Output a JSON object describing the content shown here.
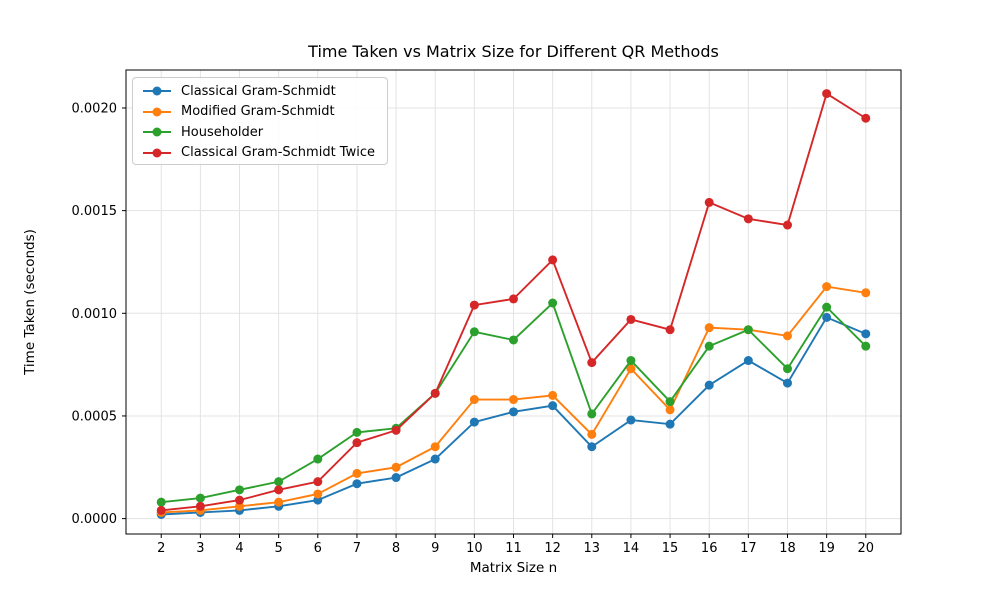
{
  "chart_data": {
    "type": "line",
    "title": "Time Taken vs Matrix Size for Different QR Methods",
    "xlabel": "Matrix Size n",
    "ylabel": "Time Taken (seconds)",
    "x": [
      2,
      3,
      4,
      5,
      6,
      7,
      8,
      9,
      10,
      11,
      12,
      13,
      14,
      15,
      16,
      17,
      18,
      19,
      20
    ],
    "series": [
      {
        "name": "Classical Gram-Schmidt",
        "color": "#1f77b4",
        "values": [
          2e-05,
          3e-05,
          4e-05,
          6e-05,
          9e-05,
          0.00017,
          0.0002,
          0.00029,
          0.00047,
          0.00052,
          0.00055,
          0.00035,
          0.00048,
          0.00046,
          0.00065,
          0.00077,
          0.00066,
          0.00098,
          0.0009
        ]
      },
      {
        "name": "Modified Gram-Schmidt",
        "color": "#ff7f0e",
        "values": [
          3e-05,
          4e-05,
          6e-05,
          8e-05,
          0.00012,
          0.00022,
          0.00025,
          0.00035,
          0.00058,
          0.00058,
          0.0006,
          0.00041,
          0.00073,
          0.00053,
          0.00093,
          0.00092,
          0.00089,
          0.00113,
          0.0011
        ]
      },
      {
        "name": "Householder",
        "color": "#2ca02c",
        "values": [
          8e-05,
          0.0001,
          0.00014,
          0.00018,
          0.00029,
          0.00042,
          0.00044,
          0.00061,
          0.00091,
          0.00087,
          0.00105,
          0.00051,
          0.00077,
          0.00057,
          0.00084,
          0.00092,
          0.00073,
          0.00103,
          0.00084
        ]
      },
      {
        "name": "Classical Gram-Schmidt Twice",
        "color": "#d62728",
        "values": [
          4e-05,
          6e-05,
          9e-05,
          0.00014,
          0.00018,
          0.00037,
          0.00043,
          0.00061,
          0.00104,
          0.00107,
          0.00126,
          0.00076,
          0.00097,
          0.00092,
          0.00154,
          0.00146,
          0.00143,
          0.00207,
          0.00195
        ]
      }
    ],
    "xlim": [
      1.1,
      20.9
    ],
    "ylim": [
      -7.5e-05,
      0.002185
    ],
    "x_ticks": {
      "values": [
        2,
        3,
        4,
        5,
        6,
        7,
        8,
        9,
        10,
        11,
        12,
        13,
        14,
        15,
        16,
        17,
        18,
        19,
        20
      ],
      "labels": [
        "2",
        "3",
        "4",
        "5",
        "6",
        "7",
        "8",
        "9",
        "10",
        "11",
        "12",
        "13",
        "14",
        "15",
        "16",
        "17",
        "18",
        "19",
        "20"
      ]
    },
    "y_ticks": {
      "values": [
        0.0,
        0.0005,
        0.001,
        0.0015,
        0.002
      ],
      "labels": [
        "0.0000",
        "0.0005",
        "0.0010",
        "0.0015",
        "0.0020"
      ]
    },
    "grid": true,
    "grid_color": "#e3e3e3",
    "legend_position": "upper left",
    "marker": "circle"
  }
}
